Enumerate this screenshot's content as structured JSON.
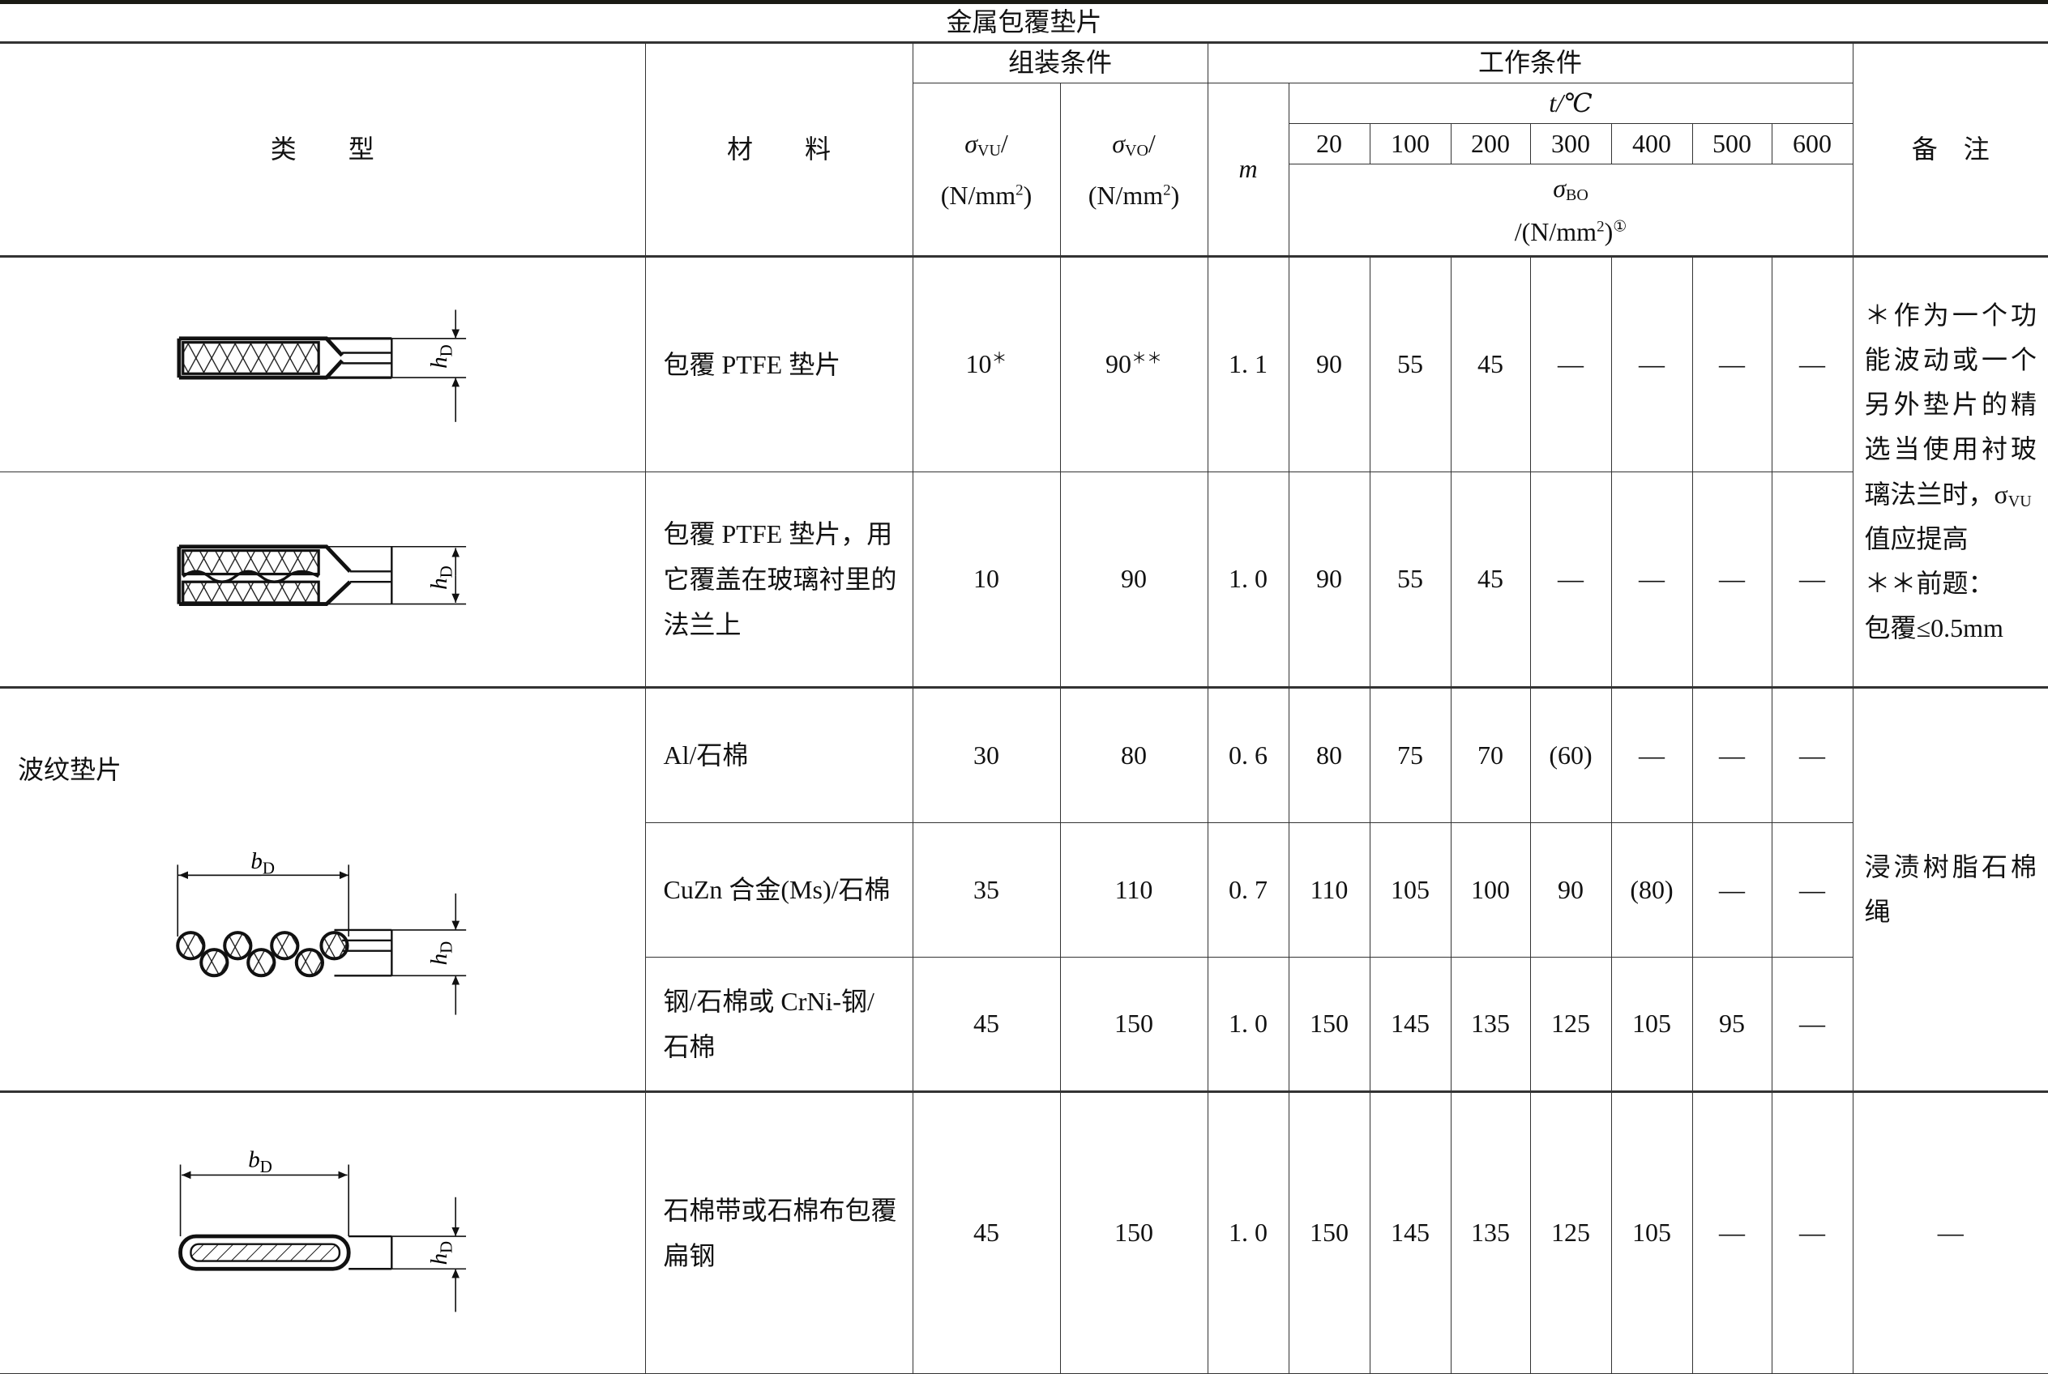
{
  "title": "金属包覆垫片",
  "header": {
    "type": "类　　型",
    "material": "材　　料",
    "assembly": "组装条件",
    "working": "工作条件",
    "remarks": "备　注",
    "sigma_vu": {
      "sym": "σ",
      "sub": "VU",
      "slash": "/",
      "unit": "(N/mm",
      "sup": "2",
      "close": ")"
    },
    "sigma_vo": {
      "sym": "σ",
      "sub": "VO",
      "slash": "/",
      "unit": "(N/mm",
      "sup": "2",
      "close": ")"
    },
    "m": "m",
    "t_label": "t/℃",
    "temps": [
      "20",
      "100",
      "200",
      "300",
      "400",
      "500",
      "600"
    ],
    "sigma_bo": {
      "sym": "σ",
      "sub": "BO",
      "unit": "/(N/mm",
      "sup": "2",
      "close": ")",
      "note": "①"
    }
  },
  "diagram_labels": {
    "hD": "h",
    "hD_sub": "D",
    "bD": "b",
    "bD_sub": "D"
  },
  "groups": {
    "corrugated_type": "波纹垫片",
    "remark_ptfe": "＊作为一个功能波动或一个另外垫片的精选当使用衬玻璃法兰时，σ",
    "remark_ptfe_sub": "VU",
    "remark_ptfe_2": "值应提高",
    "remark_ptfe_3": "＊＊前题：",
    "remark_ptfe_4": "包覆≤0.5mm",
    "remark_corrugated": "浸渍树脂石棉绳",
    "remark_flat": "—"
  },
  "rows": [
    {
      "material": "包覆 PTFE 垫片",
      "vu": "10",
      "vu_mark": "＊",
      "vo": "90",
      "vo_mark": "＊＊",
      "m": "1. 1",
      "values": [
        "90",
        "55",
        "45",
        "—",
        "—",
        "—",
        "—"
      ]
    },
    {
      "material": "包覆 PTFE 垫片，用它覆盖在玻璃衬里的法兰上",
      "vu": "10",
      "vo": "90",
      "m": "1. 0",
      "values": [
        "90",
        "55",
        "45",
        "—",
        "—",
        "—",
        "—"
      ]
    },
    {
      "material": "Al/石棉",
      "vu": "30",
      "vo": "80",
      "m": "0. 6",
      "values": [
        "80",
        "75",
        "70",
        "(60)",
        "—",
        "—",
        "—"
      ]
    },
    {
      "material": "CuZn 合金(Ms)/石棉",
      "vu": "35",
      "vo": "110",
      "m": "0. 7",
      "values": [
        "110",
        "105",
        "100",
        "90",
        "(80)",
        "—",
        "—"
      ]
    },
    {
      "material": "钢/石棉或 CrNi-钢/石棉",
      "vu": "45",
      "vo": "150",
      "m": "1. 0",
      "values": [
        "150",
        "145",
        "135",
        "125",
        "105",
        "95",
        "—"
      ]
    },
    {
      "material": "石棉带或石棉布包覆扁钢",
      "vu": "45",
      "vo": "150",
      "m": "1. 0",
      "values": [
        "150",
        "145",
        "135",
        "125",
        "105",
        "—",
        "—"
      ]
    }
  ]
}
